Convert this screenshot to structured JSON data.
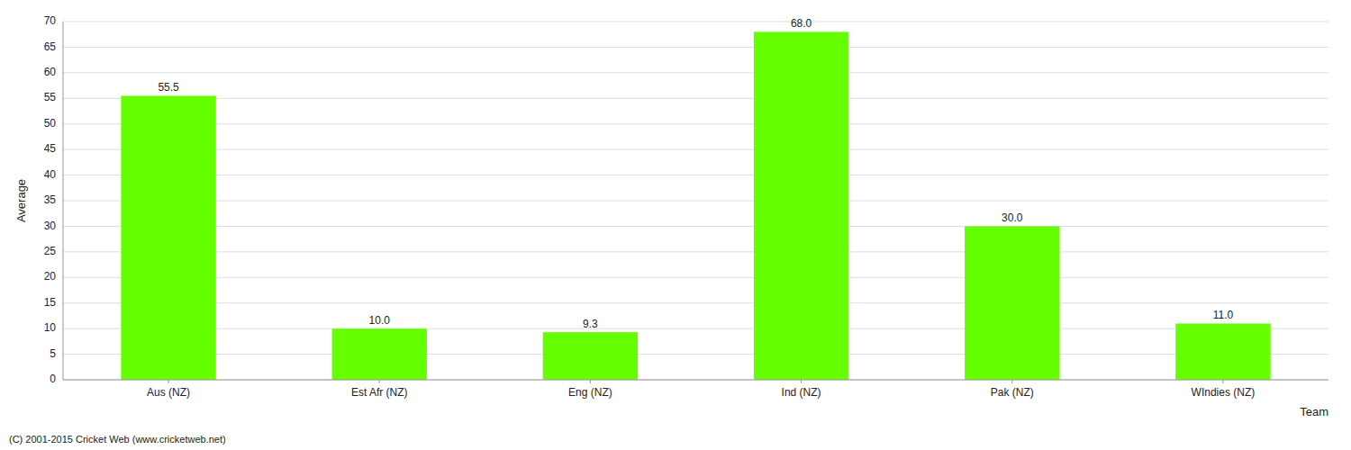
{
  "chart_data": {
    "type": "bar",
    "categories": [
      "Aus (NZ)",
      "Est Afr (NZ)",
      "Eng (NZ)",
      "Ind (NZ)",
      "Pak (NZ)",
      "WIndies (NZ)"
    ],
    "values": [
      55.5,
      10.0,
      9.3,
      68.0,
      30.0,
      11.0
    ],
    "value_labels": [
      "55.5",
      "10.0",
      "9.3",
      "68.0",
      "30.0",
      "11.0"
    ],
    "data_labels": true,
    "color": "#66ff00",
    "ylabel": "Average",
    "xlabel": "Team",
    "ylim": [
      0,
      70
    ],
    "yticks": [
      0,
      5,
      10,
      15,
      20,
      25,
      30,
      35,
      40,
      45,
      50,
      55,
      60,
      65,
      70
    ],
    "grid": true,
    "footnote": "(C) 2001-2015 Cricket Web (www.cricketweb.net)"
  }
}
